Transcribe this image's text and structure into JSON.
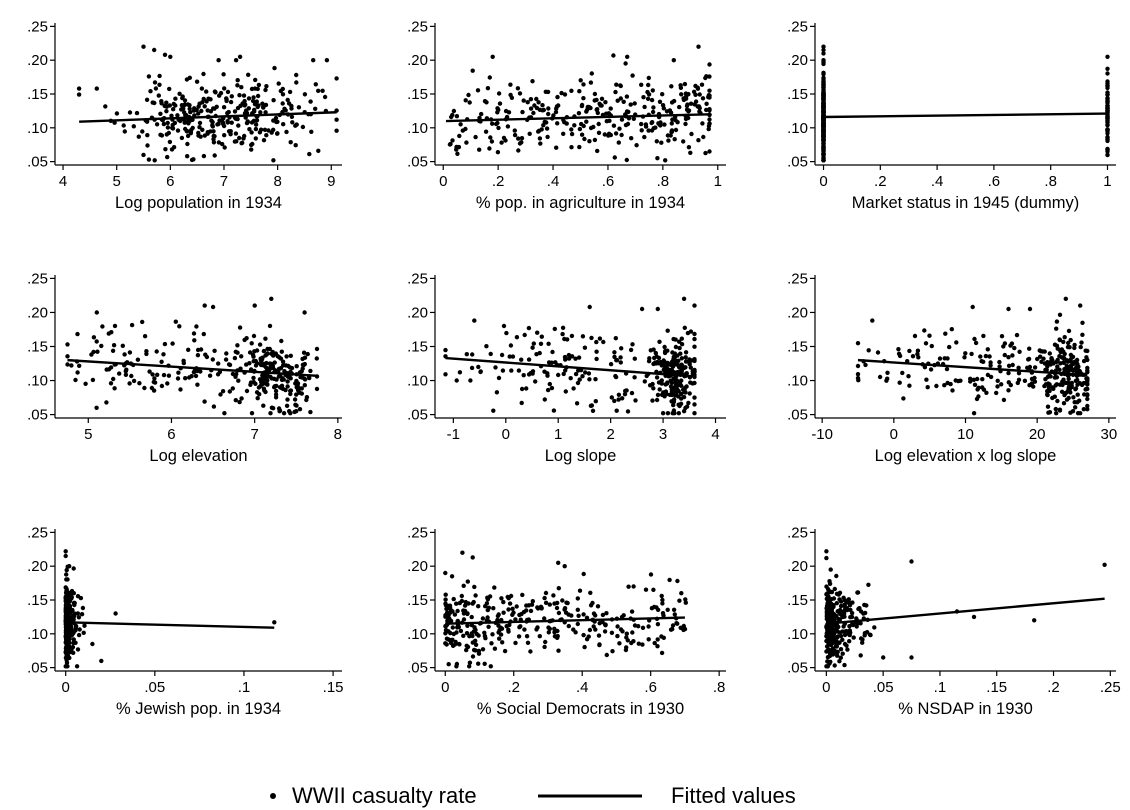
{
  "chart_data": [
    {
      "type": "scatter",
      "xlabel": "Log population in 1934",
      "xticks": [
        {
          "v": 4,
          "label": "4"
        },
        {
          "v": 5,
          "label": "5"
        },
        {
          "v": 6,
          "label": "6"
        },
        {
          "v": 7,
          "label": "7"
        },
        {
          "v": 8,
          "label": "8"
        },
        {
          "v": 9,
          "label": "9"
        }
      ],
      "xlim": [
        3.85,
        9.2
      ],
      "ylim": [
        0.045,
        0.255
      ],
      "yticks": [
        {
          "v": 0.05,
          "label": ".05"
        },
        {
          "v": 0.1,
          "label": ".10"
        },
        {
          "v": 0.15,
          "label": ".15"
        },
        {
          "v": 0.2,
          "label": ".20"
        },
        {
          "v": 0.25,
          "label": ".25"
        }
      ],
      "fit": [
        [
          4.3,
          0.109
        ],
        [
          9.1,
          0.123
        ]
      ],
      "gen": {
        "mode": "normal",
        "xmin": 4.3,
        "xmax": 9.1,
        "mean": 6.9,
        "sd": 0.85,
        "n": 330,
        "ysd": 0.028,
        "seed": 11
      },
      "points": [
        [
          5.5,
          0.22
        ],
        [
          5.9,
          0.208
        ],
        [
          6.0,
          0.205
        ],
        [
          7.3,
          0.205
        ],
        [
          5.7,
          0.215
        ],
        [
          6.9,
          0.2
        ],
        [
          4.3,
          0.158
        ],
        [
          8.9,
          0.125
        ],
        [
          9.1,
          0.112
        ],
        [
          5.5,
          0.06
        ],
        [
          5.6,
          0.053
        ]
      ]
    },
    {
      "type": "scatter",
      "xlabel": "% pop. in agriculture in 1934",
      "xticks": [
        {
          "v": 0,
          "label": "0"
        },
        {
          "v": 0.2,
          "label": ".2"
        },
        {
          "v": 0.4,
          "label": ".4"
        },
        {
          "v": 0.6,
          "label": ".6"
        },
        {
          "v": 0.8,
          "label": ".8"
        },
        {
          "v": 1.0,
          "label": "1"
        }
      ],
      "xlim": [
        -0.03,
        1.03
      ],
      "ylim": [
        0.045,
        0.255
      ],
      "yticks": [
        {
          "v": 0.05,
          "label": ".05"
        },
        {
          "v": 0.1,
          "label": ".10"
        },
        {
          "v": 0.15,
          "label": ".15"
        },
        {
          "v": 0.2,
          "label": ".20"
        },
        {
          "v": 0.25,
          "label": ".25"
        }
      ],
      "fit": [
        [
          0.01,
          0.11
        ],
        [
          0.97,
          0.12
        ]
      ],
      "gen": {
        "mode": "beta",
        "xmin": 0.01,
        "xmax": 0.97,
        "n": 330,
        "ysd": 0.027,
        "seed": 23
      },
      "points": [
        [
          0.93,
          0.22
        ],
        [
          0.18,
          0.205
        ],
        [
          0.62,
          0.207
        ],
        [
          0.67,
          0.205
        ],
        [
          0.84,
          0.2
        ],
        [
          0.97,
          0.065
        ],
        [
          0.9,
          0.063
        ],
        [
          0.78,
          0.055
        ]
      ]
    },
    {
      "type": "scatter",
      "xlabel": "Market status in 1945 (dummy)",
      "xticks": [
        {
          "v": 0,
          "label": "0"
        },
        {
          "v": 0.2,
          "label": ".2"
        },
        {
          "v": 0.4,
          "label": ".4"
        },
        {
          "v": 0.6,
          "label": ".6"
        },
        {
          "v": 0.8,
          "label": ".8"
        },
        {
          "v": 1.0,
          "label": "1"
        }
      ],
      "xlim": [
        -0.03,
        1.03
      ],
      "ylim": [
        0.045,
        0.255
      ],
      "yticks": [
        {
          "v": 0.05,
          "label": ".05"
        },
        {
          "v": 0.1,
          "label": ".10"
        },
        {
          "v": 0.15,
          "label": ".15"
        },
        {
          "v": 0.2,
          "label": ".20"
        },
        {
          "v": 0.25,
          "label": ".25"
        }
      ],
      "fit": [
        [
          0.0,
          0.116
        ],
        [
          1.0,
          0.121
        ]
      ],
      "gen": {
        "mode": "dummy",
        "n0": 280,
        "n1": 60,
        "ysd": 0.028,
        "seed": 37
      },
      "points": [
        [
          0,
          0.22
        ],
        [
          0,
          0.215
        ],
        [
          0,
          0.21
        ],
        [
          0,
          0.055
        ],
        [
          0,
          0.052
        ],
        [
          1,
          0.205
        ],
        [
          1,
          0.068
        ],
        [
          1,
          0.065
        ]
      ]
    },
    {
      "type": "scatter",
      "xlabel": "Log elevation",
      "xticks": [
        {
          "v": 5,
          "label": "5"
        },
        {
          "v": 6,
          "label": "6"
        },
        {
          "v": 7,
          "label": "7"
        },
        {
          "v": 8,
          "label": "8"
        }
      ],
      "xlim": [
        4.6,
        8.05
      ],
      "ylim": [
        0.045,
        0.255
      ],
      "yticks": [
        {
          "v": 0.05,
          "label": ".05"
        },
        {
          "v": 0.1,
          "label": ".10"
        },
        {
          "v": 0.15,
          "label": ".15"
        },
        {
          "v": 0.2,
          "label": ".20"
        },
        {
          "v": 0.25,
          "label": ".25"
        }
      ],
      "fit": [
        [
          4.75,
          0.13
        ],
        [
          7.75,
          0.107
        ]
      ],
      "gen": {
        "mode": "mix",
        "xmin": 4.75,
        "xmax": 7.75,
        "c": [
          {
            "mean": 7.25,
            "sd": 0.28,
            "w": 0.6
          },
          {
            "mean": 5.8,
            "sd": 0.65,
            "w": 0.4
          }
        ],
        "n": 330,
        "ysd": 0.027,
        "seed": 41
      },
      "points": [
        [
          7.2,
          0.22
        ],
        [
          6.4,
          0.21
        ],
        [
          6.5,
          0.208
        ],
        [
          7.0,
          0.21
        ],
        [
          7.6,
          0.2
        ],
        [
          5.1,
          0.06
        ],
        [
          7.3,
          0.055
        ],
        [
          7.5,
          0.055
        ]
      ]
    },
    {
      "type": "scatter",
      "xlabel": "Log slope",
      "xticks": [
        {
          "v": -1,
          "label": "-1"
        },
        {
          "v": 0,
          "label": "0"
        },
        {
          "v": 1,
          "label": "1"
        },
        {
          "v": 2,
          "label": "2"
        },
        {
          "v": 3,
          "label": "3"
        },
        {
          "v": 4,
          "label": "4"
        }
      ],
      "xlim": [
        -1.35,
        4.2
      ],
      "ylim": [
        0.045,
        0.255
      ],
      "yticks": [
        {
          "v": 0.05,
          "label": ".05"
        },
        {
          "v": 0.1,
          "label": ".10"
        },
        {
          "v": 0.15,
          "label": ".15"
        },
        {
          "v": 0.2,
          "label": ".20"
        },
        {
          "v": 0.25,
          "label": ".25"
        }
      ],
      "fit": [
        [
          -1.15,
          0.133
        ],
        [
          3.6,
          0.106
        ]
      ],
      "gen": {
        "mode": "mix",
        "xmin": -1.15,
        "xmax": 3.6,
        "c": [
          {
            "mean": 3.2,
            "sd": 0.22,
            "w": 0.55
          },
          {
            "mean": 1.3,
            "sd": 1.1,
            "w": 0.45
          }
        ],
        "n": 340,
        "ysd": 0.027,
        "seed": 53
      },
      "points": [
        [
          3.4,
          0.22
        ],
        [
          1.6,
          0.208
        ],
        [
          3.6,
          0.21
        ],
        [
          2.6,
          0.205
        ],
        [
          2.9,
          0.205
        ],
        [
          -0.6,
          0.188
        ],
        [
          3.4,
          0.055
        ],
        [
          3.3,
          0.052
        ]
      ]
    },
    {
      "type": "scatter",
      "xlabel": "Log elevation x log slope",
      "xticks": [
        {
          "v": -10,
          "label": "-10"
        },
        {
          "v": 0,
          "label": "0"
        },
        {
          "v": 10,
          "label": "10"
        },
        {
          "v": 20,
          "label": "20"
        },
        {
          "v": 30,
          "label": "30"
        }
      ],
      "xlim": [
        -11,
        31
      ],
      "ylim": [
        0.045,
        0.255
      ],
      "yticks": [
        {
          "v": 0.05,
          "label": ".05"
        },
        {
          "v": 0.1,
          "label": ".10"
        },
        {
          "v": 0.15,
          "label": ".15"
        },
        {
          "v": 0.2,
          "label": ".20"
        },
        {
          "v": 0.25,
          "label": ".25"
        }
      ],
      "fit": [
        [
          -5,
          0.13
        ],
        [
          27,
          0.108
        ]
      ],
      "gen": {
        "mode": "mix",
        "xmin": -5,
        "xmax": 27,
        "c": [
          {
            "mean": 24,
            "sd": 2.0,
            "w": 0.55
          },
          {
            "mean": 10,
            "sd": 7.5,
            "w": 0.45
          }
        ],
        "n": 340,
        "ysd": 0.027,
        "seed": 67
      },
      "points": [
        [
          24,
          0.22
        ],
        [
          11,
          0.208
        ],
        [
          26,
          0.21
        ],
        [
          16,
          0.205
        ],
        [
          19,
          0.205
        ],
        [
          -3,
          0.188
        ],
        [
          25,
          0.055
        ],
        [
          26,
          0.052
        ]
      ]
    },
    {
      "type": "scatter",
      "xlabel": "% Jewish pop. in 1934",
      "xticks": [
        {
          "v": 0,
          "label": "0"
        },
        {
          "v": 0.05,
          "label": ".05"
        },
        {
          "v": 0.1,
          "label": ".1"
        },
        {
          "v": 0.15,
          "label": ".15"
        }
      ],
      "xlim": [
        -0.006,
        0.155
      ],
      "ylim": [
        0.045,
        0.255
      ],
      "yticks": [
        {
          "v": 0.05,
          "label": ".05"
        },
        {
          "v": 0.1,
          "label": ".10"
        },
        {
          "v": 0.15,
          "label": ".15"
        },
        {
          "v": 0.2,
          "label": ".20"
        },
        {
          "v": 0.25,
          "label": ".25"
        }
      ],
      "fit": [
        [
          0.0,
          0.117
        ],
        [
          0.117,
          0.109
        ]
      ],
      "gen": {
        "mode": "exp",
        "xmin": 0,
        "xmax": 0.022,
        "scale": 0.0035,
        "n": 330,
        "ysd": 0.028,
        "seed": 71
      },
      "points": [
        [
          0.0,
          0.222
        ],
        [
          0.0,
          0.215
        ],
        [
          0.028,
          0.13
        ],
        [
          0.117,
          0.117
        ],
        [
          0.015,
          0.085
        ],
        [
          0.02,
          0.06
        ],
        [
          0.0,
          0.052
        ]
      ]
    },
    {
      "type": "scatter",
      "xlabel": "% Social Democrats in 1930",
      "xticks": [
        {
          "v": 0,
          "label": "0"
        },
        {
          "v": 0.2,
          "label": ".2"
        },
        {
          "v": 0.4,
          "label": ".4"
        },
        {
          "v": 0.6,
          "label": ".6"
        },
        {
          "v": 0.8,
          "label": ".8"
        }
      ],
      "xlim": [
        -0.03,
        0.82
      ],
      "ylim": [
        0.045,
        0.255
      ],
      "yticks": [
        {
          "v": 0.05,
          "label": ".05"
        },
        {
          "v": 0.1,
          "label": ".10"
        },
        {
          "v": 0.15,
          "label": ".15"
        },
        {
          "v": 0.2,
          "label": ".20"
        },
        {
          "v": 0.25,
          "label": ".25"
        }
      ],
      "fit": [
        [
          0.0,
          0.115
        ],
        [
          0.7,
          0.124
        ]
      ],
      "gen": {
        "mode": "skew",
        "xmin": 0,
        "xmax": 0.71,
        "pow": 1.6,
        "n": 340,
        "ysd": 0.027,
        "seed": 83
      },
      "points": [
        [
          0.05,
          0.22
        ],
        [
          0.08,
          0.213
        ],
        [
          0.33,
          0.205
        ],
        [
          0.0,
          0.19
        ],
        [
          0.02,
          0.185
        ],
        [
          0.55,
          0.17
        ],
        [
          0.01,
          0.055
        ]
      ]
    },
    {
      "type": "scatter",
      "xlabel": "% NSDAP in 1930",
      "xticks": [
        {
          "v": 0,
          "label": "0"
        },
        {
          "v": 0.05,
          "label": ".05"
        },
        {
          "v": 0.1,
          "label": ".1"
        },
        {
          "v": 0.15,
          "label": ".15"
        },
        {
          "v": 0.2,
          "label": ".2"
        },
        {
          "v": 0.25,
          "label": ".25"
        }
      ],
      "xlim": [
        -0.01,
        0.255
      ],
      "ylim": [
        0.045,
        0.255
      ],
      "yticks": [
        {
          "v": 0.05,
          "label": ".05"
        },
        {
          "v": 0.1,
          "label": ".10"
        },
        {
          "v": 0.15,
          "label": ".15"
        },
        {
          "v": 0.2,
          "label": ".20"
        },
        {
          "v": 0.25,
          "label": ".25"
        }
      ],
      "fit": [
        [
          0.0,
          0.115
        ],
        [
          0.245,
          0.152
        ]
      ],
      "gen": {
        "mode": "exp",
        "xmin": 0,
        "xmax": 0.1,
        "scale": 0.018,
        "n": 320,
        "ysd": 0.027,
        "seed": 97
      },
      "points": [
        [
          0.0,
          0.222
        ],
        [
          0.0,
          0.212
        ],
        [
          0.075,
          0.207
        ],
        [
          0.245,
          0.202
        ],
        [
          0.183,
          0.12
        ],
        [
          0.13,
          0.125
        ],
        [
          0.115,
          0.133
        ],
        [
          0.075,
          0.065
        ],
        [
          0.05,
          0.065
        ],
        [
          0.0,
          0.052
        ]
      ]
    }
  ],
  "legend": {
    "position": "bottom-center",
    "items": [
      {
        "label": "WWII casualty rate",
        "kind": "marker"
      },
      {
        "label": "Fitted values",
        "kind": "line"
      }
    ]
  }
}
